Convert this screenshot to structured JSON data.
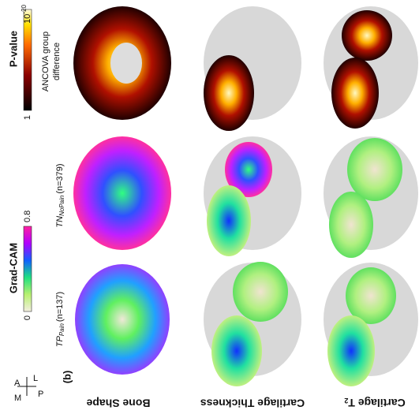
{
  "panel": "(b)",
  "orientation": {
    "a": "A",
    "l": "L",
    "m": "M",
    "p": "P"
  },
  "pvalue_bar": {
    "title": "P-value",
    "low": "1",
    "high_base": "10",
    "high_exp": "-20",
    "caption": [
      "ANCOVA group",
      "difference"
    ]
  },
  "gradcam_bar": {
    "title": "Grad-CAM",
    "low": "0",
    "high": "0.8"
  },
  "groups": [
    {
      "name": "TN",
      "subscript": "NoPain",
      "count": "(n=379)"
    },
    {
      "name": "TP",
      "subscript": "Pain",
      "count": "(n=137)"
    }
  ],
  "rows": [
    "Bone Shape",
    "Cartilage Thickness",
    "Cartilage T",
    "2"
  ]
}
